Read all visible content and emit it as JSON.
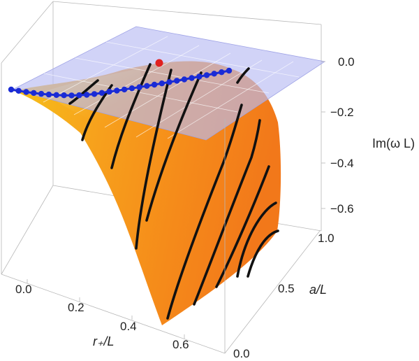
{
  "chart_data": {
    "type": "surface3d",
    "title": "",
    "axes": {
      "x": {
        "label": "r₊/L",
        "range": [
          0,
          0.65
        ],
        "ticks": [
          "0.0",
          "0.2",
          "0.4",
          "0.6"
        ]
      },
      "y": {
        "label": "a/L",
        "range": [
          0,
          1.0
        ],
        "ticks": [
          "0.0",
          "0.5",
          "1.0"
        ]
      },
      "z": {
        "label": "Im(ω L)",
        "range": [
          -0.75,
          0.08
        ],
        "ticks": [
          "0.0",
          "−0.2",
          "−0.4",
          "−0.6"
        ]
      }
    },
    "surface": {
      "name": "Im(ω L) surface",
      "colormap": "orange-yellow",
      "max_value": 0.0
    },
    "plane": {
      "name": "Im(ω L) = 0 plane",
      "z": 0.0,
      "color": "#b9bcf2"
    },
    "contours": {
      "name": "constant Im(ω L) contours",
      "color": "#111111",
      "count": 11
    },
    "series": [
      {
        "name": "blue curve on plane",
        "color": "#1a2bd6",
        "points": 30
      },
      {
        "name": "red point",
        "color": "#e02020",
        "points": 1
      }
    ]
  }
}
